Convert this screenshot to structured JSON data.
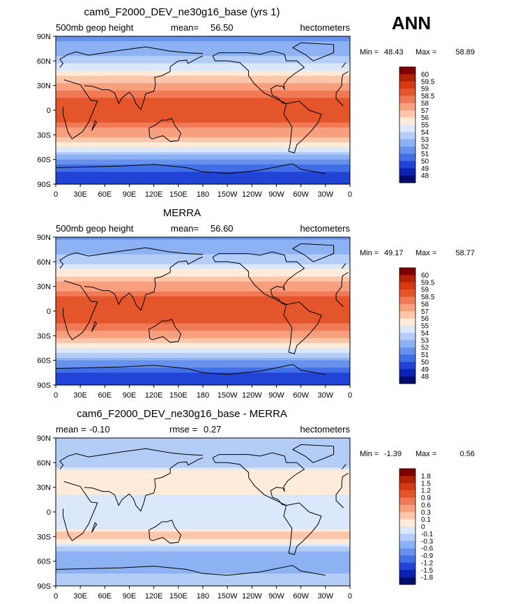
{
  "season": "ANN",
  "chart_data": [
    {
      "type": "heatmap",
      "title": "cam6_F2000_DEV_ne30g16_base (yrs 1)",
      "left_label": "500mb geop height",
      "stat_label": "mean=",
      "stat_value": "56.50",
      "stat2_label": "",
      "stat2_value": "",
      "units": "hectometers",
      "min_label": "Min =",
      "min_value": "48.43",
      "max_label": "Max =",
      "max_value": "58.89",
      "colorbar_labels": [
        "60",
        "59.5",
        "59",
        "58.5",
        "58",
        "57",
        "56",
        "55",
        "54",
        "53",
        "52",
        "51",
        "50",
        "49",
        "48"
      ],
      "colorbar_colors": [
        "#800000",
        "#b22204",
        "#d73a12",
        "#e5552a",
        "#f07a55",
        "#f8a07e",
        "#fcc6aa",
        "#feebd9",
        "#dbe7fb",
        "#b4cdf7",
        "#8cb2f3",
        "#6692ee",
        "#416fe6",
        "#2144d6",
        "#0c22b2",
        "#000f6e"
      ],
      "lat_ticks": [
        "90N",
        "60N",
        "30N",
        "0",
        "30S",
        "60S",
        "90S"
      ],
      "lon_ticks": [
        "0",
        "30E",
        "60E",
        "90E",
        "120E",
        "150E",
        "180",
        "150W",
        "120W",
        "90W",
        "60W",
        "30W",
        "0"
      ],
      "zonal_profile": [
        {
          "lat": 90,
          "value": 51.8
        },
        {
          "lat": 75,
          "value": 52.2
        },
        {
          "lat": 60,
          "value": 53.6
        },
        {
          "lat": 45,
          "value": 55.5
        },
        {
          "lat": 30,
          "value": 57.6
        },
        {
          "lat": 15,
          "value": 58.5
        },
        {
          "lat": 0,
          "value": 58.6
        },
        {
          "lat": -15,
          "value": 58.6
        },
        {
          "lat": -30,
          "value": 57.3
        },
        {
          "lat": -45,
          "value": 55.0
        },
        {
          "lat": -60,
          "value": 52.0
        },
        {
          "lat": -75,
          "value": 49.8
        },
        {
          "lat": -90,
          "value": 49.5
        }
      ]
    },
    {
      "type": "heatmap",
      "title": "MERRA",
      "left_label": "500mb geop height",
      "stat_label": "mean=",
      "stat_value": "56.60",
      "stat2_label": "",
      "stat2_value": "",
      "units": "hectometers",
      "min_label": "Min =",
      "min_value": "49.17",
      "max_label": "Max =",
      "max_value": "58.77",
      "colorbar_labels": [
        "60",
        "59.5",
        "59",
        "58.5",
        "58",
        "57",
        "56",
        "55",
        "54",
        "53",
        "52",
        "51",
        "50",
        "49",
        "48"
      ],
      "colorbar_colors": [
        "#800000",
        "#b22204",
        "#d73a12",
        "#e5552a",
        "#f07a55",
        "#f8a07e",
        "#fcc6aa",
        "#feebd9",
        "#dbe7fb",
        "#b4cdf7",
        "#8cb2f3",
        "#6692ee",
        "#416fe6",
        "#2144d6",
        "#0c22b2",
        "#000f6e"
      ],
      "lat_ticks": [
        "90N",
        "60N",
        "30N",
        "0",
        "30S",
        "60S",
        "90S"
      ],
      "lon_ticks": [
        "0",
        "30E",
        "60E",
        "90E",
        "120E",
        "150E",
        "180",
        "150W",
        "120W",
        "90W",
        "60W",
        "30W",
        "0"
      ],
      "zonal_profile": [
        {
          "lat": 90,
          "value": 51.9
        },
        {
          "lat": 75,
          "value": 52.3
        },
        {
          "lat": 60,
          "value": 53.7
        },
        {
          "lat": 45,
          "value": 55.6
        },
        {
          "lat": 30,
          "value": 57.7
        },
        {
          "lat": 15,
          "value": 58.6
        },
        {
          "lat": 0,
          "value": 58.6
        },
        {
          "lat": -15,
          "value": 58.6
        },
        {
          "lat": -30,
          "value": 57.4
        },
        {
          "lat": -45,
          "value": 55.1
        },
        {
          "lat": -60,
          "value": 52.1
        },
        {
          "lat": -75,
          "value": 50.0
        },
        {
          "lat": -90,
          "value": 49.8
        }
      ]
    },
    {
      "type": "heatmap",
      "title": "cam6_F2000_DEV_ne30g16_base - MERRA",
      "left_label": "mean =",
      "stat_label": "-0.10",
      "stat_value": "",
      "stat2_label": "rmse =",
      "stat2_value": "0.27",
      "units": "hectometers",
      "min_label": "Min =",
      "min_value": "-1.39",
      "max_label": "Max =",
      "max_value": "0.56",
      "colorbar_labels": [
        "1.8",
        "1.5",
        "1.2",
        "0.9",
        "0.6",
        "0.3",
        "0.1",
        "0",
        "-0.1",
        "-0.3",
        "-0.6",
        "-0.9",
        "-1.2",
        "-1.5",
        "-1.8"
      ],
      "colorbar_colors": [
        "#800000",
        "#b22204",
        "#d73a12",
        "#e5552a",
        "#f07a55",
        "#f8a07e",
        "#fcc6aa",
        "#feebd9",
        "#dbe7fb",
        "#b4cdf7",
        "#8cb2f3",
        "#6692ee",
        "#416fe6",
        "#2144d6",
        "#0c22b2",
        "#000f6e"
      ],
      "lat_ticks": [
        "90N",
        "60N",
        "30N",
        "0",
        "30S",
        "60S",
        "90S"
      ],
      "lon_ticks": [
        "0",
        "30E",
        "60E",
        "90E",
        "120E",
        "150E",
        "180",
        "150W",
        "120W",
        "90W",
        "60W",
        "30W",
        "0"
      ],
      "zonal_profile": [
        {
          "lat": 90,
          "value": -0.2
        },
        {
          "lat": 75,
          "value": -0.3
        },
        {
          "lat": 60,
          "value": -0.2
        },
        {
          "lat": 45,
          "value": 0.1
        },
        {
          "lat": 30,
          "value": 0.05
        },
        {
          "lat": 15,
          "value": -0.05
        },
        {
          "lat": 0,
          "value": -0.05
        },
        {
          "lat": -15,
          "value": -0.1
        },
        {
          "lat": -30,
          "value": 0.2
        },
        {
          "lat": -45,
          "value": -0.2
        },
        {
          "lat": -60,
          "value": -0.6
        },
        {
          "lat": -75,
          "value": -0.3
        },
        {
          "lat": -90,
          "value": -0.2
        }
      ]
    }
  ]
}
